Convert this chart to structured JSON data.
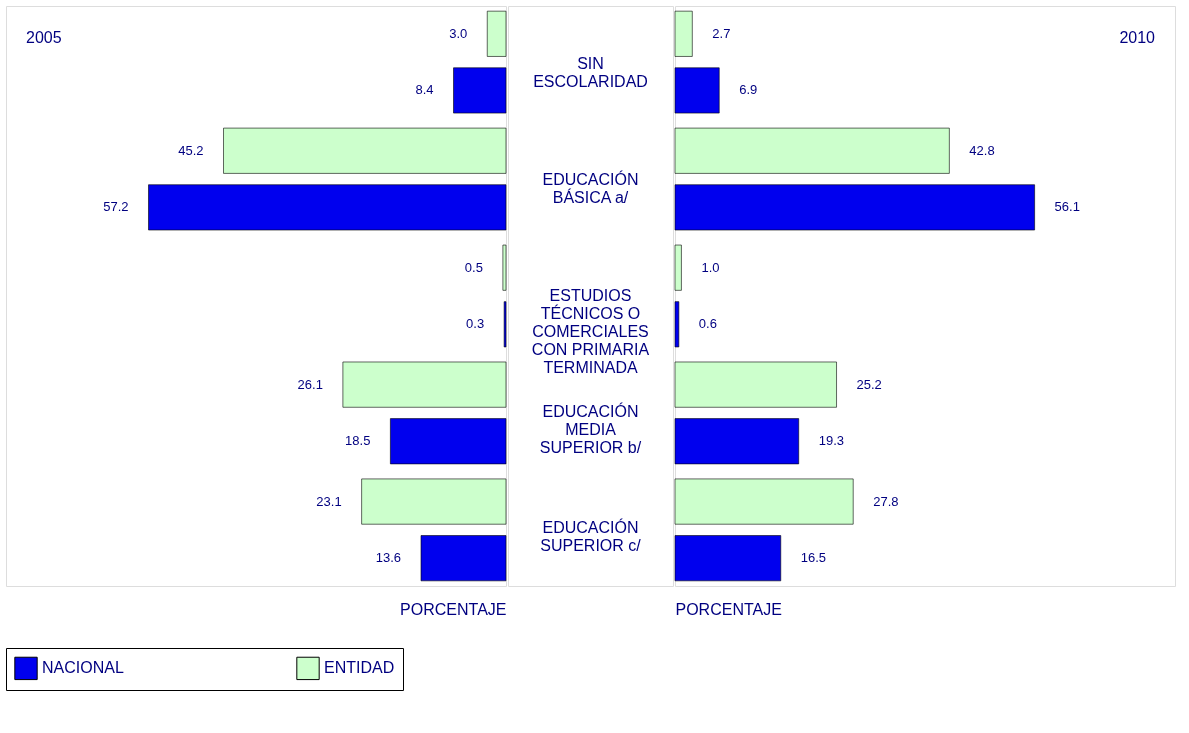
{
  "chart_data": [
    {
      "type": "bar",
      "orientation": "horizontal",
      "title": "2005",
      "xlabel": "PORCENTAJE",
      "categories": [
        "SIN ESCOLARIDAD",
        "EDUCACIÓN BÁSICA a/",
        "ESTUDIOS TÉCNICOS O COMERCIALES CON PRIMARIA TERMINADA",
        "EDUCACIÓN MEDIA SUPERIOR b/",
        "EDUCACIÓN SUPERIOR c/"
      ],
      "xlim": [
        80,
        0
      ],
      "legend": "bottom",
      "series": [
        {
          "name": "NACIONAL",
          "color": "#0000ee",
          "values": [
            8.4,
            57.2,
            0.3,
            18.5,
            13.6
          ],
          "value_labels": [
            "8.4",
            "57.2",
            "0.3",
            "18.5",
            "13.6"
          ]
        },
        {
          "name": "ENTIDAD",
          "color": "#ccffcc",
          "values": [
            3.0,
            45.2,
            0.5,
            26.1,
            23.1
          ],
          "value_labels": [
            "3.0",
            "45.2",
            "0.5",
            "26.1",
            "23.1"
          ]
        }
      ]
    },
    {
      "type": "bar",
      "orientation": "horizontal",
      "title": "2010",
      "xlabel": "PORCENTAJE",
      "categories": [
        null,
        null,
        null,
        null,
        null
      ],
      "xlim": [
        0,
        78
      ],
      "legend": "bottom",
      "series": [
        {
          "name": "NACIONAL",
          "color": "#0000ee",
          "values": [
            6.9,
            56.1,
            0.6,
            19.3,
            16.5
          ],
          "value_labels": [
            "6.9",
            "56.1",
            "0.6",
            "19.3",
            "16.5"
          ]
        },
        {
          "name": "ENTIDAD",
          "color": "#ccffcc",
          "values": [
            2.7,
            42.8,
            1.0,
            25.2,
            27.8
          ],
          "value_labels": [
            "2.7",
            "42.8",
            "1.0",
            "25.2",
            "27.8"
          ]
        }
      ]
    }
  ]
}
